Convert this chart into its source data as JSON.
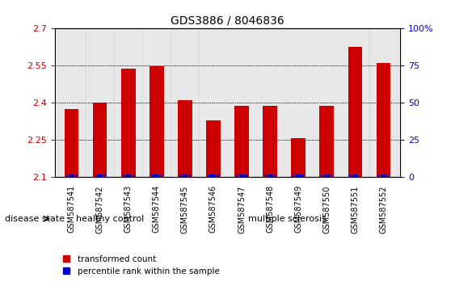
{
  "title": "GDS3886 / 8046836",
  "samples": [
    "GSM587541",
    "GSM587542",
    "GSM587543",
    "GSM587544",
    "GSM587545",
    "GSM587546",
    "GSM587547",
    "GSM587548",
    "GSM587549",
    "GSM587550",
    "GSM587551",
    "GSM587552"
  ],
  "red_values": [
    2.375,
    2.4,
    2.538,
    2.548,
    2.41,
    2.33,
    2.39,
    2.39,
    2.258,
    2.39,
    2.625,
    2.562
  ],
  "blue_values": [
    0.5,
    0.5,
    0.5,
    0.5,
    0.5,
    0.5,
    0.5,
    0.5,
    0.5,
    0.5,
    2.0,
    0.5
  ],
  "ymin": 2.1,
  "ymax": 2.7,
  "yticks": [
    2.1,
    2.25,
    2.4,
    2.55,
    2.7
  ],
  "ytick_labels": [
    "2.1",
    "2.25",
    "2.4",
    "2.55",
    "2.7"
  ],
  "right_yticks": [
    0,
    25,
    50,
    75,
    100
  ],
  "right_ytick_labels": [
    "0",
    "25",
    "50",
    "75",
    "100%"
  ],
  "healthy_count": 4,
  "group1_label": "healthy control",
  "group2_label": "multiple sclerosis",
  "disease_state_label": "disease state",
  "legend_red": "transformed count",
  "legend_blue": "percentile rank within the sample",
  "bar_color_red": "#cc0000",
  "bar_color_blue": "#0000cc",
  "group1_color": "#99ee99",
  "group2_color": "#44cc44",
  "bar_width": 0.5,
  "blue_bar_width": 0.4,
  "blue_bar_height": 0.012,
  "figsize": [
    5.63,
    3.54
  ],
  "dpi": 100
}
